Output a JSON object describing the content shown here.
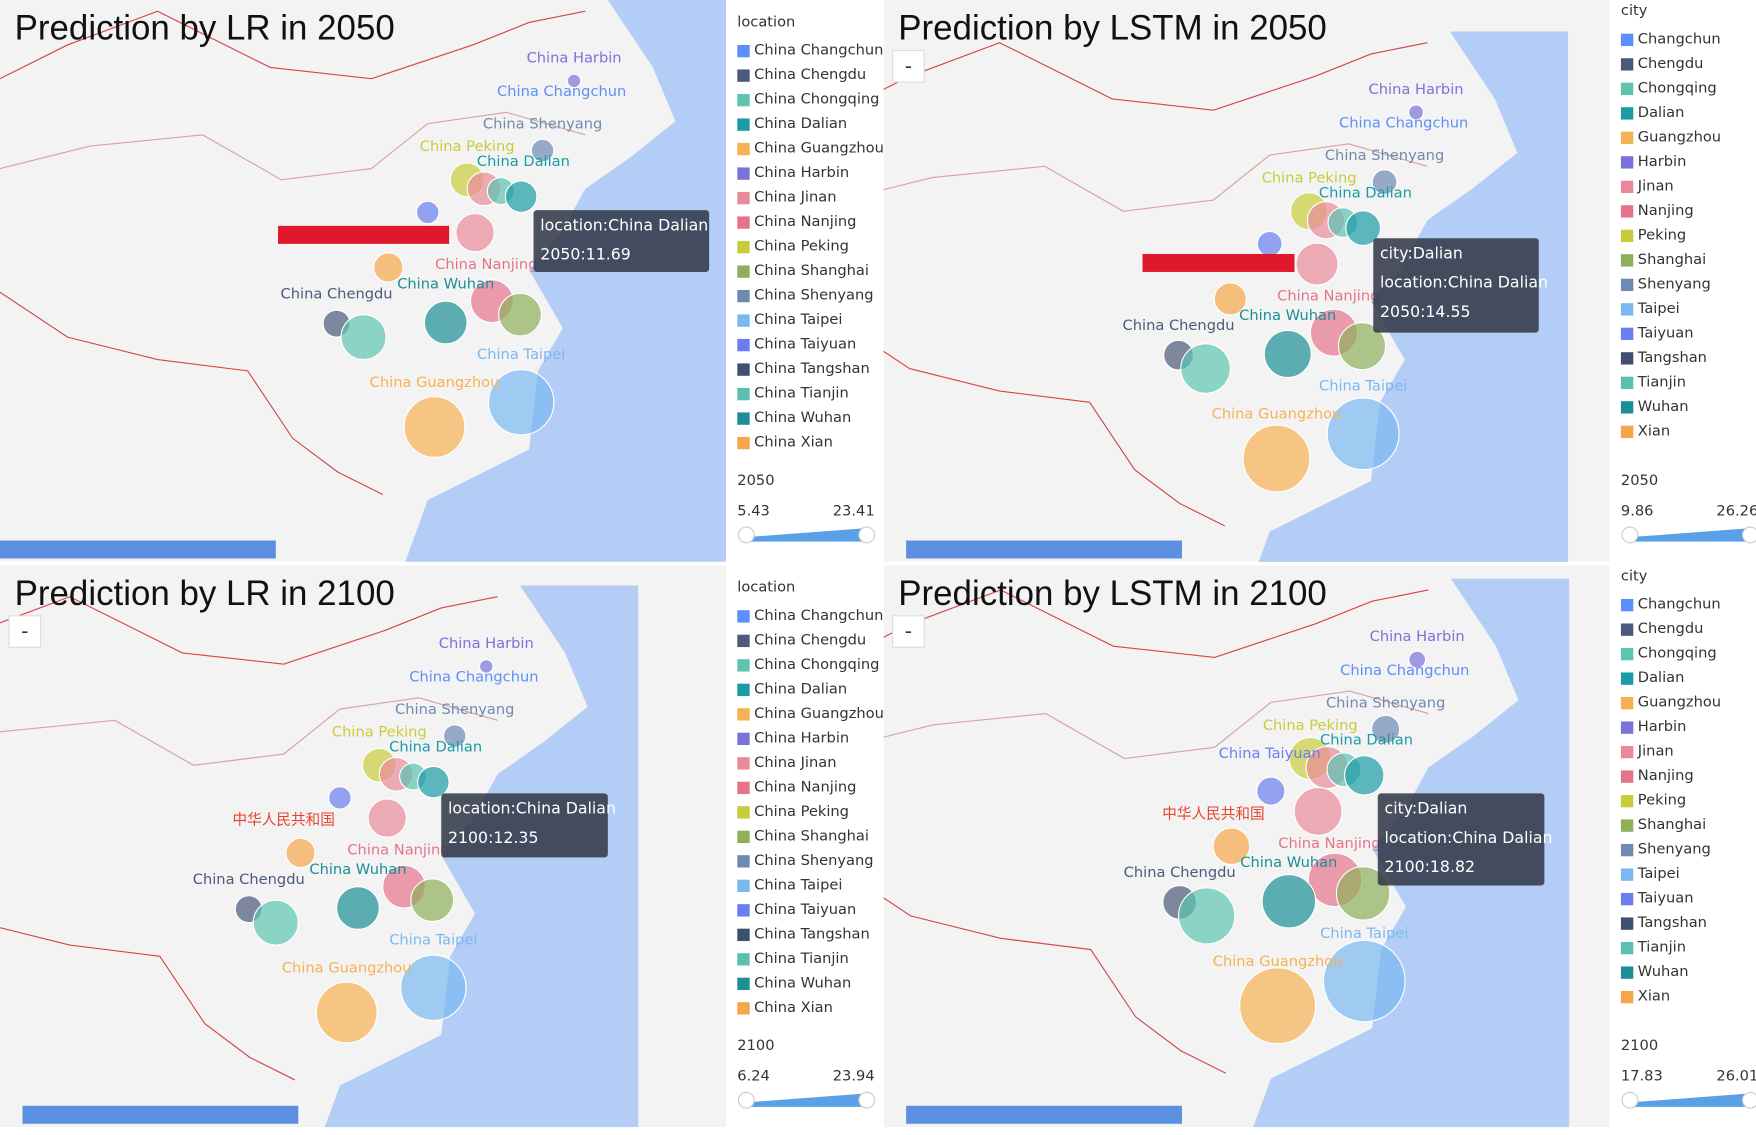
{
  "panels": [
    {
      "title": "Prediction by LR in 2050",
      "zoom_button": "-",
      "legend_title": "location",
      "legend": [
        "China Changchun",
        "China Chengdu",
        "China Chongqing",
        "China Dalian",
        "China Guangzhou",
        "China Harbin",
        "China Jinan",
        "China Nanjing",
        "China Peking",
        "China Shanghai",
        "China Shenyang",
        "China Taipei",
        "China Taiyuan",
        "China Tangshan",
        "China Tianjin",
        "China Wuhan",
        "China Xian"
      ],
      "map_labels": [
        "China Harbin",
        "China Changchun",
        "China Shenyang",
        "China Peking",
        "China Dalian",
        "China Nanjing",
        "China Wuhan",
        "China Chengdu",
        "China Taipei",
        "China Guangzhou"
      ],
      "tooltip": [
        "location:China Dalian",
        "2050:11.69"
      ],
      "range_title": "2050",
      "range_min": 5.43,
      "range_max": 23.41
    },
    {
      "title": "Prediction by LSTM in 2050",
      "zoom_button": "-",
      "legend_title": "city",
      "legend": [
        "Changchun",
        "Chengdu",
        "Chongqing",
        "Dalian",
        "Guangzhou",
        "Harbin",
        "Jinan",
        "Nanjing",
        "Peking",
        "Shanghai",
        "Shenyang",
        "Taipei",
        "Taiyuan",
        "Tangshan",
        "Tianjin",
        "Wuhan",
        "Xian"
      ],
      "map_labels": [
        "China Harbin",
        "China Changchun",
        "China Shenyang",
        "China Peking",
        "China Dalian",
        "China Nanjing",
        "China Wuhan",
        "China Chengdu",
        "China Taipei",
        "China Guangzhou"
      ],
      "tooltip": [
        "city:Dalian",
        "location:China Dalian",
        "2050:14.55"
      ],
      "range_title": "2050",
      "range_min": 9.86,
      "range_max": 26.26
    },
    {
      "title": "Prediction by LR in 2100",
      "zoom_button": "-",
      "legend_title": "location",
      "legend": [
        "China Changchun",
        "China Chengdu",
        "China Chongqing",
        "China Dalian",
        "China Guangzhou",
        "China Harbin",
        "China Jinan",
        "China Nanjing",
        "China Peking",
        "China Shanghai",
        "China Shenyang",
        "China Taipei",
        "China Taiyuan",
        "China Tangshan",
        "China Tianjin",
        "China Wuhan",
        "China Xian"
      ],
      "map_labels": [
        "China Harbin",
        "China Changchun",
        "China Shenyang",
        "China Peking",
        "China Dalian",
        "China Nanjing",
        "China Wuhan",
        "China Chengdu",
        "China Taipei",
        "China Guangzhou",
        "中华人民共和国"
      ],
      "tooltip": [
        "location:China Dalian",
        "2100:12.35"
      ],
      "range_title": "2100",
      "range_min": 6.24,
      "range_max": 23.94
    },
    {
      "title": "Prediction by LSTM in 2100",
      "zoom_button": "-",
      "legend_title": "city",
      "legend": [
        "Changchun",
        "Chengdu",
        "Chongqing",
        "Dalian",
        "Guangzhou",
        "Harbin",
        "Jinan",
        "Nanjing",
        "Peking",
        "Shanghai",
        "Shenyang",
        "Taipei",
        "Taiyuan",
        "Tangshan",
        "Tianjin",
        "Wuhan",
        "Xian"
      ],
      "map_labels": [
        "China Harbin",
        "China Changchun",
        "China Shenyang",
        "China Peking",
        "China Dalian",
        "China Nanjing",
        "China Wuhan",
        "China Chengdu",
        "China Taipei",
        "China Guangzhou",
        "中华人民共和国",
        "China Taiyuan"
      ],
      "tooltip": [
        "city:Dalian",
        "location:China Dalian",
        "2100:18.82"
      ],
      "range_title": "2100",
      "range_min": 17.83,
      "range_max": 26.01
    }
  ]
}
